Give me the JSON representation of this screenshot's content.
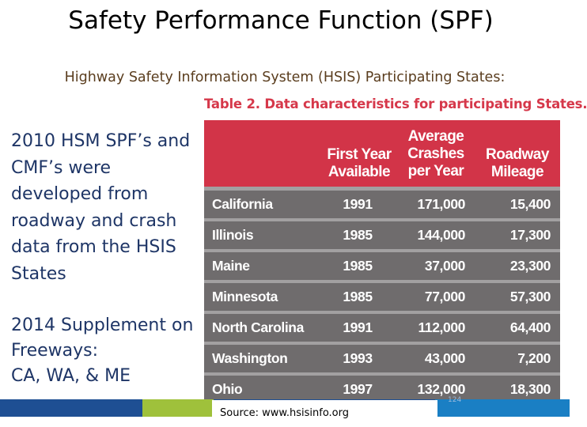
{
  "title": "Safety Performance Function (SPF)",
  "subtitle": "Highway Safety Information System (HSIS) Participating States:",
  "body_block1": [
    "2010 HSM SPF’s and",
    "CMF’s were",
    "developed from",
    "roadway and crash",
    "data from the HSIS",
    "States"
  ],
  "body_block2": [
    "2014 Supplement on",
    "Freeways:",
    "CA, WA, & ME"
  ],
  "table": {
    "caption": "Table 2. Data characteristics for participating States.",
    "headers": {
      "first_year": [
        "First Year",
        "Available"
      ],
      "crashes": [
        "Average",
        "Crashes",
        "per Year"
      ],
      "mileage": [
        "Roadway",
        "Mileage"
      ]
    },
    "rows": [
      {
        "state": "California",
        "year": "1991",
        "crashes": "171,000",
        "mileage": "15,400"
      },
      {
        "state": "Illinois",
        "year": "1985",
        "crashes": "144,000",
        "mileage": "17,300"
      },
      {
        "state": "Maine",
        "year": "1985",
        "crashes": "37,000",
        "mileage": "23,300"
      },
      {
        "state": "Minnesota",
        "year": "1985",
        "crashes": "77,000",
        "mileage": "57,300"
      },
      {
        "state": "North Carolina",
        "year": "1991",
        "crashes": "112,000",
        "mileage": "64,400"
      },
      {
        "state": "Washington",
        "year": "1993",
        "crashes": "43,000",
        "mileage": "7,200"
      },
      {
        "state": "Ohio",
        "year": "1997",
        "crashes": "132,000",
        "mileage": "18,300"
      }
    ]
  },
  "source": "Source: www.hsisinfo.org",
  "page_number": "124",
  "colors": {
    "table_header": "#d23448",
    "table_row": "#6f6c6d",
    "body_text": "#1e3566",
    "accent_blue": "#1e4f93",
    "accent_green": "#9fc13b"
  }
}
